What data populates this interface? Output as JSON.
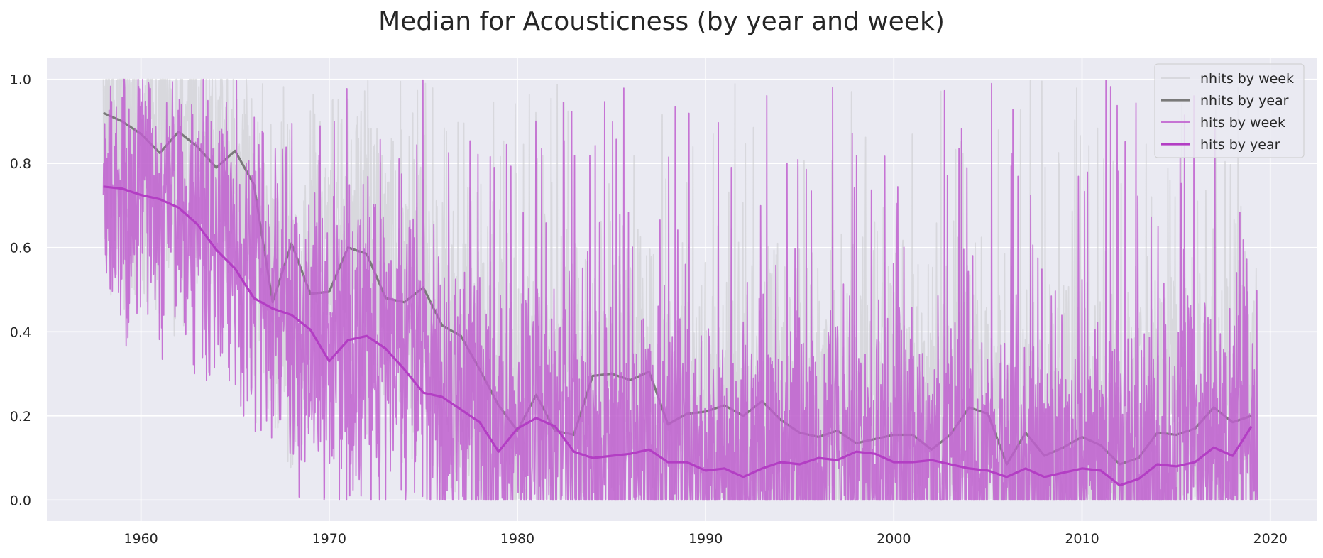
{
  "chart_data": {
    "type": "line",
    "title": "Median for Acousticness (by year and week)",
    "xlabel": "",
    "ylabel": "",
    "xlim": [
      1955,
      2022.5
    ],
    "ylim": [
      -0.05,
      1.05
    ],
    "xticks": [
      1960,
      1970,
      1980,
      1990,
      2000,
      2010,
      2020
    ],
    "yticks": [
      0.0,
      0.2,
      0.4,
      0.6,
      0.8,
      1.0
    ],
    "grid": true,
    "legend_position": "top-right",
    "weekly_range": [
      1958.0,
      2019.3
    ],
    "series": [
      {
        "name": "nhits by week",
        "kind": "weekly",
        "color": "#c8c8cc",
        "opacity": 0.55,
        "trend": [
          [
            1958,
            0.9
          ],
          [
            1965,
            0.78
          ],
          [
            1967,
            0.5
          ],
          [
            1972,
            0.58
          ],
          [
            1976,
            0.42
          ],
          [
            1980,
            0.2
          ],
          [
            1985,
            0.3
          ],
          [
            1988,
            0.2
          ],
          [
            1995,
            0.18
          ],
          [
            2005,
            0.2
          ],
          [
            2006,
            0.1
          ],
          [
            2012,
            0.1
          ],
          [
            2017,
            0.22
          ],
          [
            2019.3,
            0.2
          ]
        ],
        "spread": 0.5
      },
      {
        "name": "nhits by year",
        "kind": "yearly",
        "color": "#7a7a7a",
        "x": [
          1958,
          1959,
          1960,
          1961,
          1962,
          1963,
          1964,
          1965,
          1966,
          1967,
          1968,
          1969,
          1970,
          1971,
          1972,
          1973,
          1974,
          1975,
          1976,
          1977,
          1978,
          1979,
          1980,
          1981,
          1982,
          1983,
          1984,
          1985,
          1986,
          1987,
          1988,
          1989,
          1990,
          1991,
          1992,
          1993,
          1994,
          1995,
          1996,
          1997,
          1998,
          1999,
          2000,
          2001,
          2002,
          2003,
          2004,
          2005,
          2006,
          2007,
          2008,
          2009,
          2010,
          2011,
          2012,
          2013,
          2014,
          2015,
          2016,
          2017,
          2018,
          2019
        ],
        "values": [
          0.92,
          0.9,
          0.87,
          0.825,
          0.875,
          0.84,
          0.79,
          0.83,
          0.75,
          0.47,
          0.61,
          0.49,
          0.495,
          0.6,
          0.585,
          0.48,
          0.47,
          0.505,
          0.415,
          0.39,
          0.31,
          0.225,
          0.165,
          0.25,
          0.165,
          0.155,
          0.295,
          0.3,
          0.285,
          0.305,
          0.18,
          0.205,
          0.21,
          0.225,
          0.2,
          0.235,
          0.19,
          0.16,
          0.15,
          0.165,
          0.135,
          0.145,
          0.155,
          0.155,
          0.12,
          0.155,
          0.22,
          0.205,
          0.085,
          0.16,
          0.105,
          0.125,
          0.15,
          0.13,
          0.085,
          0.1,
          0.16,
          0.155,
          0.17,
          0.22,
          0.185,
          0.2
        ]
      },
      {
        "name": "hits by week",
        "kind": "weekly",
        "color": "#bf5fcf",
        "opacity": 0.85,
        "trend": [
          [
            1958,
            0.74
          ],
          [
            1962,
            0.69
          ],
          [
            1965,
            0.55
          ],
          [
            1968,
            0.43
          ],
          [
            1970,
            0.33
          ],
          [
            1973,
            0.36
          ],
          [
            1976,
            0.24
          ],
          [
            1979,
            0.12
          ],
          [
            1981,
            0.19
          ],
          [
            1984,
            0.1
          ],
          [
            1990,
            0.07
          ],
          [
            1995,
            0.08
          ],
          [
            2000,
            0.09
          ],
          [
            2006,
            0.06
          ],
          [
            2010,
            0.07
          ],
          [
            2012,
            0.04
          ],
          [
            2017,
            0.12
          ],
          [
            2019.3,
            0.17
          ]
        ],
        "spread": 0.42
      },
      {
        "name": "hits by year",
        "kind": "yearly",
        "color": "#b33ec4",
        "x": [
          1958,
          1959,
          1960,
          1961,
          1962,
          1963,
          1964,
          1965,
          1966,
          1967,
          1968,
          1969,
          1970,
          1971,
          1972,
          1973,
          1974,
          1975,
          1976,
          1977,
          1978,
          1979,
          1980,
          1981,
          1982,
          1983,
          1984,
          1985,
          1986,
          1987,
          1988,
          1989,
          1990,
          1991,
          1992,
          1993,
          1994,
          1995,
          1996,
          1997,
          1998,
          1999,
          2000,
          2001,
          2002,
          2003,
          2004,
          2005,
          2006,
          2007,
          2008,
          2009,
          2010,
          2011,
          2012,
          2013,
          2014,
          2015,
          2016,
          2017,
          2018,
          2019
        ],
        "values": [
          0.745,
          0.74,
          0.725,
          0.715,
          0.695,
          0.655,
          0.595,
          0.55,
          0.48,
          0.455,
          0.44,
          0.405,
          0.33,
          0.38,
          0.39,
          0.36,
          0.31,
          0.255,
          0.245,
          0.215,
          0.185,
          0.115,
          0.17,
          0.195,
          0.175,
          0.115,
          0.1,
          0.105,
          0.11,
          0.12,
          0.09,
          0.09,
          0.07,
          0.075,
          0.055,
          0.075,
          0.09,
          0.085,
          0.1,
          0.095,
          0.115,
          0.11,
          0.09,
          0.09,
          0.095,
          0.085,
          0.075,
          0.07,
          0.055,
          0.075,
          0.055,
          0.065,
          0.075,
          0.07,
          0.035,
          0.05,
          0.085,
          0.08,
          0.09,
          0.125,
          0.105,
          0.175
        ]
      }
    ]
  }
}
